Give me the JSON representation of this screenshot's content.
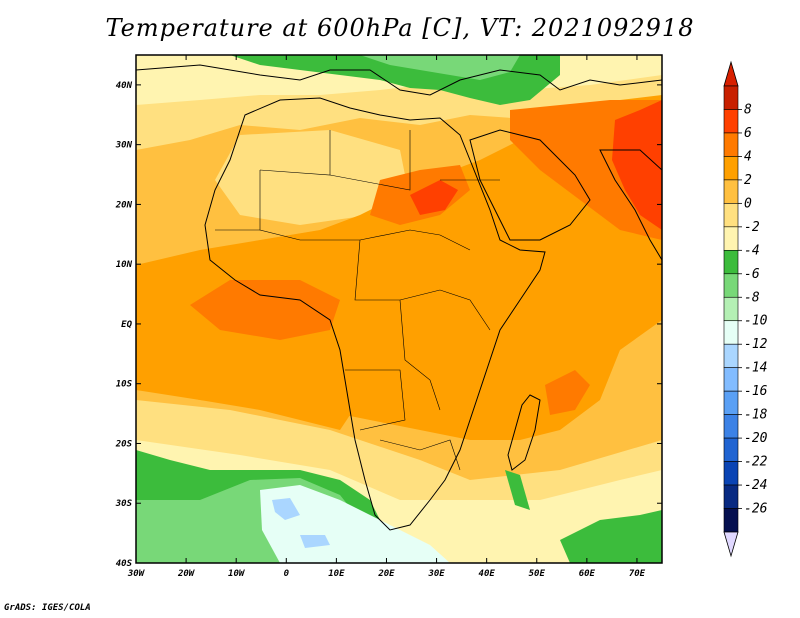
{
  "title": "Temperature at 600hPa [C], VT: 2021092918",
  "credit": "GrADS: IGES/COLA",
  "lon_labels": [
    "30W",
    "20W",
    "10W",
    "0",
    "10E",
    "20E",
    "30E",
    "40E",
    "50E",
    "60E",
    "70E"
  ],
  "lat_labels": [
    "40N",
    "30N",
    "20N",
    "10N",
    "EQ",
    "10S",
    "20S",
    "30S",
    "40S"
  ],
  "colorbar": {
    "labels": [
      "8",
      "6",
      "4",
      "2",
      "0",
      "-2",
      "-4",
      "-6",
      "-8",
      "-10",
      "-12",
      "-14",
      "-16",
      "-18",
      "-20",
      "-22",
      "-24",
      "-26"
    ],
    "colors": [
      "#c82000",
      "#ff4000",
      "#ff7a00",
      "#ffa000",
      "#ffc040",
      "#ffe080",
      "#fff4b0",
      "#3cbc3c",
      "#78d878",
      "#b4f0b4",
      "#e6fff6",
      "#aad6ff",
      "#82bcff",
      "#5aa0f5",
      "#3c82e6",
      "#2064d2",
      "#0a44b4",
      "#082a82",
      "#051050"
    ],
    "upper_arrow_color": "#d82000",
    "lower_arrow_color": "#e0d8ff"
  },
  "chart_data": {
    "type": "heatmap",
    "title": "Temperature at 600hPa [C], VT: 2021092918",
    "x_range": [
      -30,
      75
    ],
    "y_range": [
      -40,
      45
    ],
    "x_ticks": [
      -30,
      -20,
      -10,
      0,
      10,
      20,
      30,
      40,
      50,
      60,
      70
    ],
    "y_ticks": [
      40,
      30,
      20,
      10,
      0,
      -10,
      -20,
      -30,
      -40
    ],
    "levels": [
      -26,
      -24,
      -22,
      -20,
      -18,
      -16,
      -14,
      -12,
      -10,
      -8,
      -6,
      -4,
      -2,
      0,
      2,
      4,
      6,
      8
    ],
    "regions": [
      {
        "name": "north-mediterranean-green",
        "level": -5,
        "center": [
          27,
          42
        ]
      },
      {
        "name": "sahel-sahara-orange",
        "level": 3,
        "center": [
          15,
          12
        ]
      },
      {
        "name": "sudan-hotspot",
        "level": 5,
        "center": [
          28,
          20
        ]
      },
      {
        "name": "india-hotspot",
        "level": 6,
        "center": [
          70,
          24
        ]
      },
      {
        "name": "arabia-orange",
        "level": 4,
        "center": [
          50,
          27
        ]
      },
      {
        "name": "indian-ocean-orange",
        "level": 3,
        "center": [
          60,
          0
        ]
      },
      {
        "name": "southern-atlantic-green",
        "level": -6,
        "center": [
          -25,
          -30
        ]
      },
      {
        "name": "south-atlantic-cold-core",
        "level": -11,
        "center": [
          5,
          -37
        ]
      },
      {
        "name": "south-ocean-green",
        "level": -6,
        "center": [
          60,
          -37
        ]
      }
    ]
  }
}
